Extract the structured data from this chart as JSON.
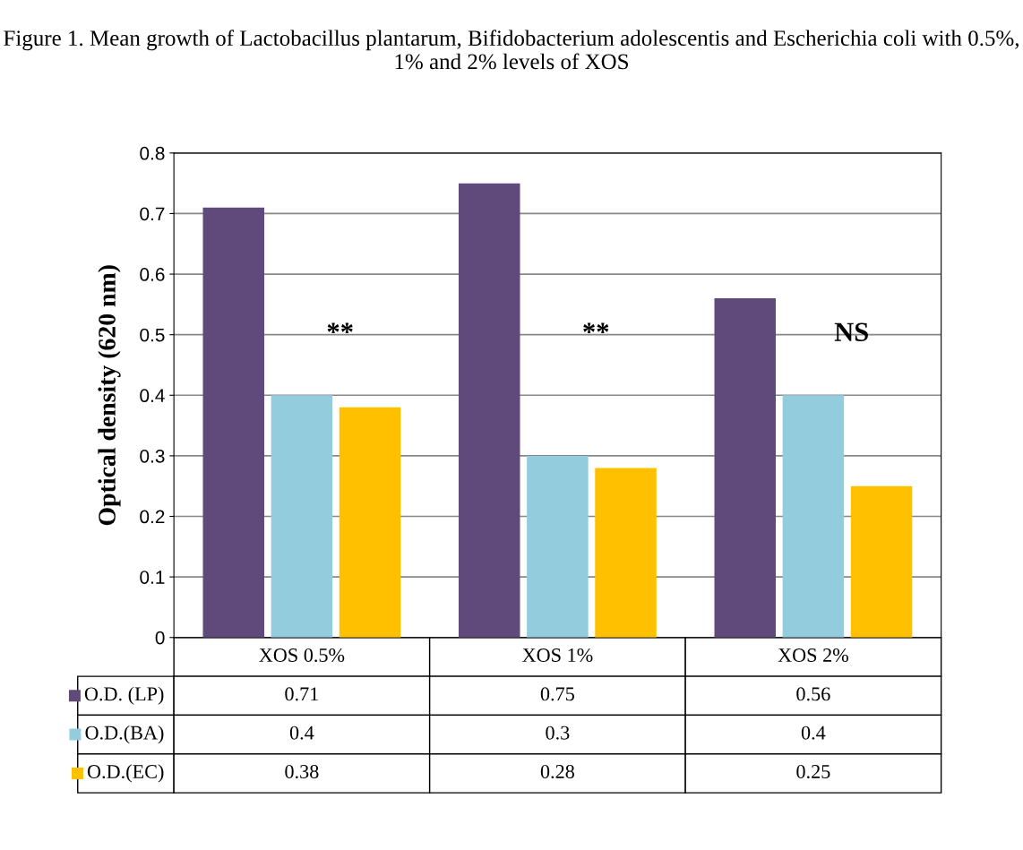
{
  "chart_data": {
    "type": "bar",
    "title": "Figure 1. Mean growth of Lactobacillus plantarum, Bifidobacterium adolescentis and Escherichia coli with 0.5%, 1% and 2% levels of XOS",
    "ylabel": "Optical density (620 nm)",
    "categories": [
      "XOS 0.5%",
      "XOS 1%",
      "XOS 2%"
    ],
    "series": [
      {
        "name": "O.D. (LP)",
        "color": "#604a7b",
        "values": [
          0.71,
          0.75,
          0.56
        ]
      },
      {
        "name": "O.D.(BA)",
        "color": "#93cddd",
        "values": [
          0.4,
          0.3,
          0.4
        ]
      },
      {
        "name": "O.D.(EC)",
        "color": "#ffc000",
        "values": [
          0.38,
          0.28,
          0.25
        ]
      }
    ],
    "ylim": [
      0,
      0.8
    ],
    "yticks": [
      0,
      0.1,
      0.2,
      0.3,
      0.4,
      0.5,
      0.6,
      0.7,
      0.8
    ],
    "grid": "y",
    "data_labels": true,
    "tick_labels": "y",
    "annotations": [
      "**",
      "**",
      "NS"
    ],
    "legend": "bottom left"
  }
}
